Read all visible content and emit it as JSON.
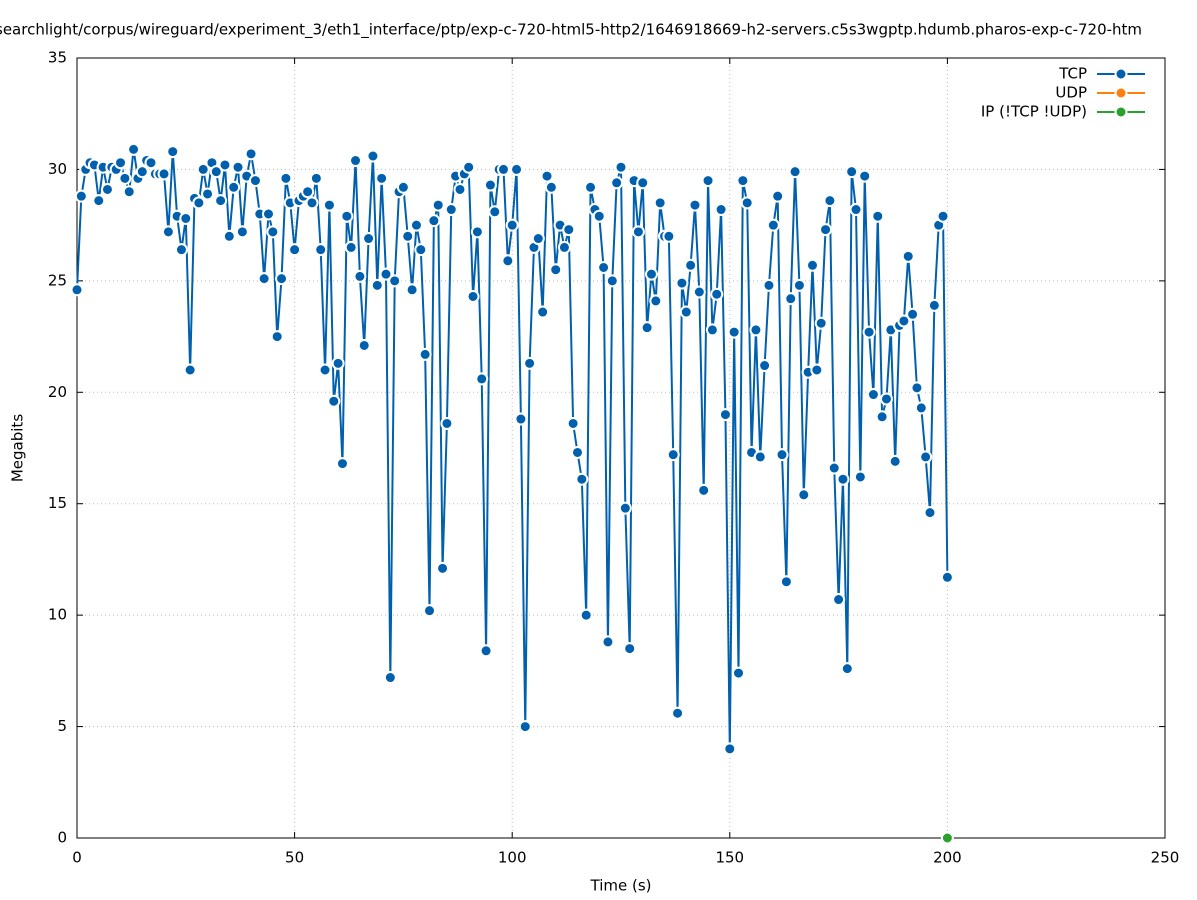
{
  "chart_data": {
    "type": "line",
    "title": "searchlight/corpus/wireguard/experiment_3/eth1_interface/ptp/exp-c-720-html5-http2/1646918669-h2-servers.c5s3wgptp.hdumb.pharos-exp-c-720-htm",
    "x_label": "Time (s)",
    "y_label": "Megabits",
    "xlim": [
      0,
      250
    ],
    "xticks": [
      0,
      50,
      100,
      150,
      200,
      250
    ],
    "ylim": [
      0,
      35
    ],
    "yticks": [
      0,
      5,
      10,
      15,
      20,
      25,
      30,
      35
    ],
    "grid": true,
    "legend": "top-right",
    "series": [
      {
        "name": "TCP",
        "color": "#0060ad",
        "x": [
          0,
          1,
          2,
          3,
          4,
          5,
          6,
          7,
          8,
          9,
          10,
          11,
          12,
          13,
          14,
          15,
          16,
          17,
          18,
          19,
          20,
          21,
          22,
          23,
          24,
          25,
          26,
          27,
          28,
          29,
          30,
          31,
          32,
          33,
          34,
          35,
          36,
          37,
          38,
          39,
          40,
          41,
          42,
          43,
          44,
          45,
          46,
          47,
          48,
          49,
          50,
          51,
          52,
          53,
          54,
          55,
          56,
          57,
          58,
          59,
          60,
          61,
          62,
          63,
          64,
          65,
          66,
          67,
          68,
          69,
          70,
          71,
          72,
          73,
          74,
          75,
          76,
          77,
          78,
          79,
          80,
          81,
          82,
          83,
          84,
          85,
          86,
          87,
          88,
          89,
          90,
          91,
          92,
          93,
          94,
          95,
          96,
          97,
          98,
          99,
          100,
          101,
          102,
          103,
          104,
          105,
          106,
          107,
          108,
          109,
          110,
          111,
          112,
          113,
          114,
          115,
          116,
          117,
          118,
          119,
          120,
          121,
          122,
          123,
          124,
          125,
          126,
          127,
          128,
          129,
          130,
          131,
          132,
          133,
          134,
          135,
          136,
          137,
          138,
          139,
          140,
          141,
          142,
          143,
          144,
          145,
          146,
          147,
          148,
          149,
          150,
          151,
          152,
          153,
          154,
          155,
          156,
          157,
          158,
          159,
          160,
          161,
          162,
          163,
          164,
          165,
          166,
          167,
          168,
          169,
          170,
          171,
          172,
          173,
          174,
          175,
          176,
          177,
          178,
          179,
          180,
          181,
          182,
          183,
          184,
          185,
          186,
          187,
          188,
          189,
          190,
          191,
          192,
          193,
          194,
          195,
          196,
          197,
          198,
          199,
          200
        ],
        "values": [
          24.6,
          28.8,
          30.0,
          30.3,
          30.2,
          28.6,
          30.1,
          29.1,
          30.1,
          30.0,
          30.3,
          29.6,
          29.0,
          30.9,
          29.6,
          29.9,
          30.4,
          30.3,
          29.8,
          29.8,
          29.8,
          27.2,
          30.8,
          27.9,
          26.4,
          27.8,
          21.0,
          28.7,
          28.5,
          30.0,
          28.9,
          30.3,
          29.9,
          28.6,
          30.2,
          27.0,
          29.2,
          30.1,
          27.2,
          29.7,
          30.7,
          29.5,
          28.0,
          25.1,
          28.0,
          27.2,
          22.5,
          25.1,
          29.6,
          28.5,
          26.4,
          28.6,
          28.8,
          29.0,
          28.5,
          29.6,
          26.4,
          21.0,
          28.4,
          19.6,
          21.3,
          16.8,
          27.9,
          26.5,
          30.4,
          25.2,
          22.1,
          26.9,
          30.6,
          24.8,
          29.6,
          25.3,
          7.2,
          25.0,
          29.0,
          29.2,
          27.0,
          24.6,
          27.5,
          26.4,
          21.7,
          10.2,
          27.7,
          28.4,
          12.1,
          18.6,
          28.2,
          29.7,
          29.1,
          29.8,
          30.1,
          24.3,
          27.2,
          20.6,
          8.4,
          29.3,
          28.1,
          30.0,
          30.0,
          25.9,
          27.5,
          30.0,
          18.8,
          5.0,
          21.3,
          26.5,
          26.9,
          23.6,
          29.7,
          29.2,
          25.5,
          27.5,
          26.5,
          27.3,
          18.6,
          17.3,
          16.1,
          10.0,
          29.2,
          28.2,
          27.9,
          25.6,
          8.8,
          25.0,
          29.4,
          30.1,
          14.8,
          8.5,
          29.5,
          27.2,
          29.4,
          22.9,
          25.3,
          24.1,
          28.5,
          27.0,
          27.0,
          17.2,
          5.6,
          24.9,
          23.6,
          25.7,
          28.4,
          24.5,
          15.6,
          29.5,
          22.8,
          24.4,
          28.2,
          19.0,
          4.0,
          22.7,
          7.4,
          29.5,
          28.5,
          17.3,
          22.8,
          17.1,
          21.2,
          24.8,
          27.5,
          28.8,
          17.2,
          11.5,
          24.2,
          29.9,
          24.8,
          15.4,
          20.9,
          25.7,
          21.0,
          23.1,
          27.3,
          28.6,
          16.6,
          10.7,
          16.1,
          7.6,
          29.9,
          28.2,
          16.2,
          29.7,
          22.7,
          19.9,
          27.9,
          18.9,
          19.7,
          22.8,
          16.9,
          23.0,
          23.2,
          26.1,
          23.5,
          20.2,
          19.3,
          17.1,
          14.6,
          23.9,
          27.5,
          27.9,
          11.7
        ]
      },
      {
        "name": "UDP",
        "color": "#ff7f0e",
        "x": [],
        "values": []
      },
      {
        "name": "IP (!TCP  !UDP)",
        "color": "#2ca02c",
        "x": [
          200
        ],
        "values": [
          0
        ]
      }
    ]
  }
}
